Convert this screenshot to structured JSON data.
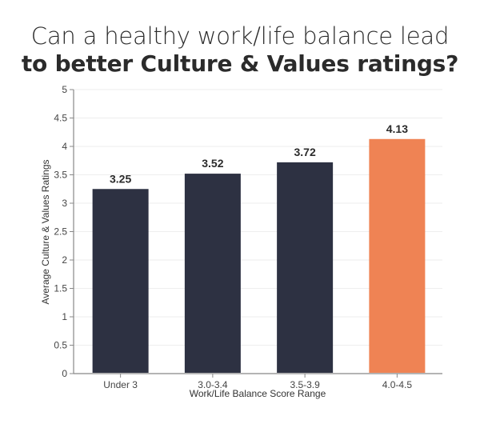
{
  "title": {
    "line1": "Can a healthy work/life balance lead",
    "line2": "to better Culture & Values ratings?"
  },
  "colors": {
    "bar_default": "#2d3142",
    "bar_highlight": "#ef8354",
    "axis": "#888888",
    "grid": "#eeeeee"
  },
  "chart_data": {
    "type": "bar",
    "title": "Can a healthy work/life balance lead to better Culture & Values ratings?",
    "categories": [
      "Under 3",
      "3.0-3.4",
      "3.5-3.9",
      "4.0-4.5"
    ],
    "values": [
      3.25,
      3.52,
      3.72,
      4.13
    ],
    "value_labels": [
      "3.25",
      "3.52",
      "3.72",
      "4.13"
    ],
    "highlight_index": 3,
    "xlabel": "Work/Life Balance Score Range",
    "ylabel": "Average Culture & Values Ratings",
    "ylim": [
      0,
      5
    ],
    "yticks": [
      0,
      0.5,
      1,
      1.5,
      2,
      2.5,
      3,
      3.5,
      4,
      4.5,
      5
    ],
    "ytick_labels": [
      "0",
      "0.5",
      "1",
      "1.5",
      "2",
      "2.5",
      "3",
      "3.5",
      "4",
      "4.5",
      "5"
    ],
    "grid": true,
    "legend": null
  }
}
